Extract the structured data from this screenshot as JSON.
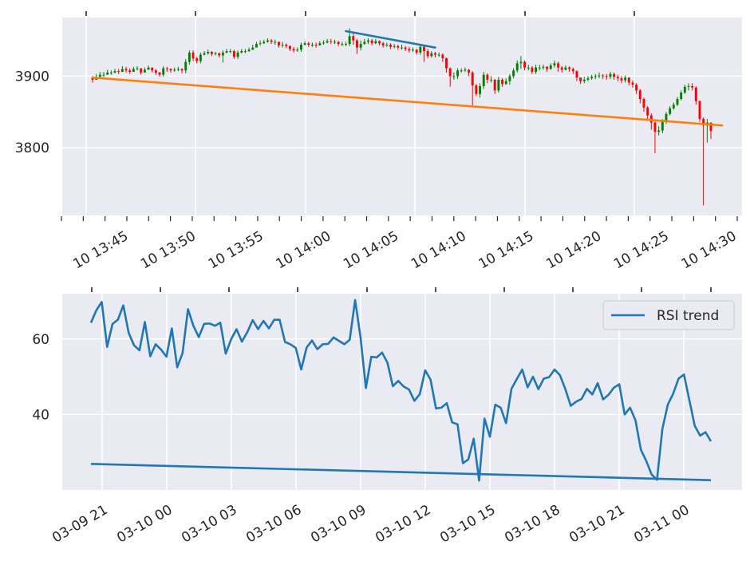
{
  "chart_data": [
    {
      "type": "candlestick",
      "title": "",
      "xlabel": "",
      "ylabel": "",
      "ylim": [
        3705,
        3982
      ],
      "yticks": [
        3800,
        3900
      ],
      "x_start": "10 13:46",
      "x_end": "10 14:31",
      "x_tick_labels": [
        "10 13:45",
        "10 13:50",
        "10 13:55",
        "10 14:00",
        "10 14:05",
        "10 14:10",
        "10 14:15",
        "10 14:20",
        "10 14:25",
        "10 14:30"
      ],
      "up_color": "#008000",
      "down_color": "#ff0000",
      "close": [
        3895,
        3899,
        3902,
        3902,
        3905,
        3905,
        3907,
        3906,
        3910,
        3908,
        3906,
        3910,
        3911,
        3905,
        3909,
        3912,
        3908,
        3905,
        3902,
        3911,
        3910,
        3908,
        3909,
        3910,
        3908,
        3920,
        3933,
        3925,
        3921,
        3930,
        3932,
        3934,
        3931,
        3932,
        3929,
        3933,
        3935,
        3935,
        3927,
        3933,
        3935,
        3935,
        3937,
        3940,
        3945,
        3946,
        3948,
        3950,
        3948,
        3948,
        3943,
        3944,
        3942,
        3938,
        3936,
        3937,
        3944,
        3946,
        3944,
        3944,
        3943,
        3946,
        3947,
        3949,
        3948,
        3948,
        3945,
        3945,
        3945,
        3956,
        3950,
        3940,
        3945,
        3948,
        3950,
        3946,
        3949,
        3946,
        3943,
        3944,
        3941,
        3942,
        3940,
        3940,
        3938,
        3936,
        3937,
        3933,
        3941,
        3935,
        3928,
        3932,
        3930,
        3930,
        3925,
        3911,
        3900,
        3900,
        3908,
        3908,
        3909,
        3905,
        3887,
        3875,
        3886,
        3902,
        3895,
        3895,
        3880,
        3895,
        3889,
        3893,
        3900,
        3908,
        3918,
        3920,
        3912,
        3912,
        3906,
        3912,
        3912,
        3913,
        3910,
        3915,
        3918,
        3912,
        3909,
        3912,
        3910,
        3907,
        3898,
        3893,
        3895,
        3897,
        3899,
        3900,
        3901,
        3900,
        3899,
        3903,
        3899,
        3897,
        3894,
        3898,
        3891,
        3888,
        3880,
        3868,
        3856,
        3845,
        3835,
        3822,
        3824,
        3837,
        3847,
        3855,
        3860,
        3868,
        3877,
        3885,
        3886,
        3884,
        3865,
        3840,
        3831,
        3835,
        3823
      ],
      "high": [
        3900,
        3903,
        3906,
        3906,
        3909,
        3908,
        3910,
        3910,
        3914,
        3913,
        3911,
        3913,
        3914,
        3911,
        3912,
        3915,
        3912,
        3910,
        3906,
        3914,
        3913,
        3911,
        3912,
        3913,
        3911,
        3924,
        3936,
        3936,
        3927,
        3933,
        3935,
        3937,
        3935,
        3934,
        3933,
        3936,
        3938,
        3938,
        3937,
        3936,
        3938,
        3938,
        3940,
        3944,
        3948,
        3950,
        3951,
        3953,
        3952,
        3951,
        3948,
        3948,
        3946,
        3943,
        3941,
        3940,
        3947,
        3949,
        3948,
        3947,
        3947,
        3949,
        3950,
        3952,
        3952,
        3951,
        3949,
        3948,
        3948,
        3967,
        3960,
        3952,
        3950,
        3952,
        3953,
        3952,
        3952,
        3950,
        3948,
        3947,
        3946,
        3945,
        3944,
        3944,
        3942,
        3941,
        3940,
        3938,
        3944,
        3944,
        3938,
        3935,
        3934,
        3933,
        3932,
        3926,
        3912,
        3905,
        3911,
        3911,
        3912,
        3910,
        3907,
        3889,
        3890,
        3906,
        3904,
        3900,
        3896,
        3899,
        3897,
        3897,
        3903,
        3911,
        3922,
        3928,
        3922,
        3916,
        3914,
        3916,
        3916,
        3916,
        3914,
        3918,
        3922,
        3920,
        3914,
        3915,
        3914,
        3912,
        3908,
        3898,
        3899,
        3900,
        3902,
        3903,
        3905,
        3903,
        3903,
        3906,
        3905,
        3902,
        3900,
        3901,
        3898,
        3894,
        3890,
        3882,
        3870,
        3858,
        3848,
        3837,
        3830,
        3840,
        3850,
        3858,
        3863,
        3871,
        3880,
        3888,
        3890,
        3890,
        3886,
        3866,
        3842,
        3840,
        3830
      ],
      "low": [
        3891,
        3895,
        3899,
        3899,
        3902,
        3902,
        3904,
        3903,
        3906,
        3905,
        3903,
        3907,
        3908,
        3902,
        3906,
        3909,
        3905,
        3902,
        3899,
        3899,
        3906,
        3905,
        3906,
        3907,
        3904,
        3904,
        3916,
        3921,
        3918,
        3918,
        3929,
        3930,
        3928,
        3929,
        3926,
        3919,
        3932,
        3932,
        3924,
        3924,
        3932,
        3932,
        3934,
        3937,
        3941,
        3943,
        3945,
        3947,
        3945,
        3944,
        3940,
        3940,
        3939,
        3935,
        3933,
        3934,
        3934,
        3943,
        3941,
        3941,
        3940,
        3943,
        3944,
        3946,
        3945,
        3945,
        3942,
        3942,
        3942,
        3942,
        3944,
        3931,
        3936,
        3944,
        3945,
        3943,
        3945,
        3943,
        3940,
        3941,
        3938,
        3939,
        3937,
        3937,
        3935,
        3933,
        3934,
        3930,
        3930,
        3920,
        3925,
        3926,
        3926,
        3927,
        3920,
        3905,
        3885,
        3895,
        3896,
        3905,
        3906,
        3900,
        3857,
        3872,
        3870,
        3882,
        3890,
        3891,
        3875,
        3877,
        3885,
        3888,
        3888,
        3897,
        3905,
        3910,
        3908,
        3908,
        3903,
        3903,
        3908,
        3909,
        3906,
        3909,
        3912,
        3906,
        3905,
        3908,
        3906,
        3903,
        3893,
        3889,
        3890,
        3893,
        3895,
        3896,
        3897,
        3896,
        3895,
        3896,
        3895,
        3893,
        3890,
        3891,
        3887,
        3884,
        3875,
        3862,
        3850,
        3838,
        3825,
        3792,
        3817,
        3820,
        3833,
        3845,
        3853,
        3858,
        3866,
        3875,
        3880,
        3880,
        3860,
        3836,
        3719,
        3807,
        3812
      ],
      "trendlines": [
        {
          "color": "#ff7f0e",
          "points": [
            [
              0,
              3898
            ],
            [
              169,
              3831
            ]
          ]
        },
        {
          "color": "#1f77b4",
          "points": [
            [
              68,
              3963
            ],
            [
              92,
              3940
            ]
          ]
        }
      ]
    },
    {
      "type": "line",
      "title": "",
      "xlabel": "",
      "ylabel": "",
      "ylim": [
        20,
        72
      ],
      "yticks": [
        40,
        60
      ],
      "x_start": "2020-03-09 20:00",
      "x_end": "2020-03-11 01:36",
      "x_tick_labels": [
        "03-09 21",
        "03-10 00",
        "03-10 03",
        "03-10 06",
        "03-10 09",
        "03-10 12",
        "03-10 15",
        "03-10 18",
        "03-10 21",
        "03-11 00"
      ],
      "legend_position": "top-right",
      "series": [
        {
          "name": "RSI trend",
          "color": "#1f77b4",
          "values": [
            64.3,
            67.6,
            69.8,
            57.9,
            64.0,
            65.1,
            68.9,
            61.6,
            58.3,
            57.0,
            64.5,
            55.4,
            58.6,
            57.2,
            55.3,
            62.8,
            52.5,
            56.3,
            67.9,
            63.5,
            60.5,
            64.0,
            64.1,
            63.5,
            64.3,
            56.1,
            59.9,
            62.6,
            59.3,
            61.8,
            65.0,
            62.6,
            64.8,
            62.8,
            65.1,
            65.1,
            59.2,
            58.6,
            57.6,
            51.9,
            57.7,
            59.6,
            57.3,
            58.6,
            58.7,
            60.4,
            59.5,
            58.6,
            59.8,
            70.3,
            60.5,
            47.0,
            55.3,
            55.1,
            56.4,
            53.7,
            47.5,
            48.9,
            47.4,
            46.6,
            43.6,
            45.4,
            51.7,
            49.2,
            41.6,
            41.8,
            43.0,
            37.9,
            37.4,
            27.1,
            28.1,
            33.6,
            22.5,
            38.9,
            34.1,
            42.6,
            41.8,
            37.7,
            46.8,
            49.4,
            51.9,
            47.2,
            50.0,
            46.7,
            49.5,
            49.9,
            51.9,
            50.4,
            46.7,
            42.3,
            43.4,
            44.1,
            46.8,
            45.3,
            48.3,
            44.0,
            45.2,
            47.1,
            48.0,
            40.0,
            41.8,
            38.5,
            30.7,
            27.7,
            24.1,
            22.7,
            36.2,
            42.6,
            45.5,
            49.5,
            50.6,
            43.8,
            37.0,
            34.4,
            35.3,
            32.9
          ],
          "trend": {
            "start": 26.9,
            "end": 22.6
          }
        }
      ]
    }
  ]
}
